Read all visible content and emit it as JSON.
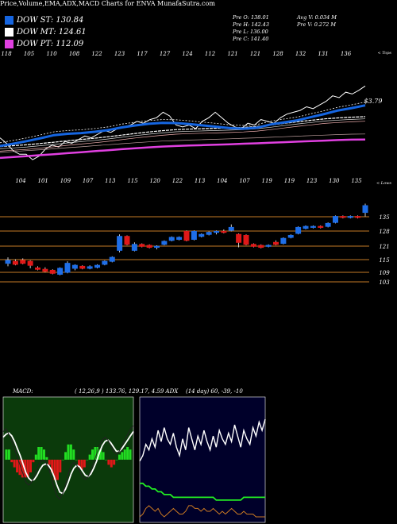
{
  "header": {
    "title": "Price,Volume,EMA,ADX,MACD Charts for ENVA MunafaSutra.com",
    "legend": [
      {
        "label": "DOW ST: 130.84",
        "color": "#1565e0"
      },
      {
        "label": "DOW MT: 124.61",
        "color": "#ffffff"
      },
      {
        "label": "DOW PT: 112.09",
        "color": "#e040e0"
      }
    ],
    "stats": {
      "open": "Pre   O: 138.01",
      "high": "Pre   H: 142.43",
      "low": "Pre   L: 136.00",
      "close": "Pre   C: 141.40",
      "avg_vol": "Avg V: 0.034   M",
      "pre_vol": "Pre   V: 0.272   M"
    }
  },
  "colors": {
    "dow_st": "#1565e0",
    "dow_mt": "#ffffff",
    "dow_pt": "#e040e0",
    "up": "#1e6ee8",
    "down": "#e01818",
    "level": "#c47a26",
    "macd_bg": "#0b3a0b",
    "macd_up": "#22dd22",
    "macd_down": "#e01818",
    "adx_bg": "#00002a",
    "adx_green": "#22ee22",
    "adx_orange": "#cc7a22"
  },
  "ema_panel": {
    "top_label": "< Tops",
    "low_label": "< Lows",
    "last_value_label": "$3.79",
    "top_values": [
      "118",
      "105",
      "110",
      "108",
      "122",
      "123",
      "117",
      "127",
      "124",
      "112",
      "121",
      "121",
      "128",
      "132",
      "131",
      "136"
    ],
    "low_values": [
      "104",
      "101",
      "109",
      "107",
      "113",
      "115",
      "120",
      "122",
      "113",
      "104",
      "107",
      "119",
      "119",
      "123",
      "130",
      "135"
    ]
  },
  "chart_data": [
    {
      "type": "line",
      "name": "EMA panel",
      "series": [
        {
          "name": "DOW ST",
          "values": [
            108.5,
            109.8,
            111.2,
            112.8,
            114.5,
            115.2,
            115.6,
            116.3,
            117.2,
            118.7,
            119.8,
            120.7,
            121.2,
            121.1,
            120.5,
            119.8,
            119.1,
            118.3,
            118.0,
            118.5,
            120.3,
            121.5,
            122.6,
            124.4,
            126.1,
            128.0,
            129.3,
            130.8
          ]
        },
        {
          "name": "DOW MT",
          "values": [
            108.2,
            108.7,
            109.2,
            109.9,
            110.6,
            111.4,
            112.1,
            112.8,
            113.6,
            114.5,
            115.4,
            116.2,
            116.9,
            117.5,
            117.8,
            118.0,
            118.2,
            118.4,
            118.7,
            119.2,
            120.0,
            120.9,
            121.8,
            122.6,
            123.4,
            123.9,
            124.3,
            124.6
          ]
        },
        {
          "name": "DOW PT",
          "values": [
            102.0,
            102.5,
            103.0,
            103.5,
            104.0,
            104.6,
            105.1,
            105.7,
            106.2,
            106.8,
            107.3,
            107.8,
            108.2,
            108.5,
            108.8,
            109.0,
            109.2,
            109.5,
            109.8,
            110.0,
            110.3,
            110.6,
            110.9,
            111.2,
            111.5,
            111.8,
            112.0,
            112.09
          ]
        },
        {
          "name": "",
          "values": [
            113,
            110,
            106,
            104,
            104,
            101,
            103,
            107,
            109,
            108,
            111,
            110,
            112,
            114,
            113,
            115,
            117,
            116,
            118,
            119,
            120,
            122,
            121,
            123,
            124,
            127,
            125,
            120,
            119,
            120,
            118,
            122,
            124,
            127,
            124,
            121,
            119,
            118,
            121,
            120,
            123,
            122,
            121,
            124,
            126,
            127,
            128,
            130,
            129,
            131,
            133,
            136,
            135,
            138,
            137,
            139,
            141.4
          ]
        }
      ]
    },
    {
      "type": "bar",
      "name": "Price candles",
      "levels": [
        135,
        128,
        121,
        115,
        109,
        103
      ],
      "candles": [
        {
          "o": 112.5,
          "c": 114.0,
          "h": 115.5,
          "l": 111.0
        },
        {
          "o": 113.5,
          "c": 112.0,
          "h": 114.5,
          "l": 111.5
        },
        {
          "o": 114.0,
          "c": 112.5,
          "h": 115.0,
          "l": 112.0
        },
        {
          "o": 113.5,
          "c": 111.5,
          "h": 114.0,
          "l": 110.0
        },
        {
          "o": 110.2,
          "c": 109.5,
          "h": 111.0,
          "l": 109.0
        },
        {
          "o": 109.5,
          "c": 108.5,
          "h": 110.5,
          "l": 108.0
        },
        {
          "o": 109.0,
          "c": 107.5,
          "h": 109.5,
          "l": 107.0
        },
        {
          "o": 107.0,
          "c": 110.0,
          "h": 110.5,
          "l": 106.5
        },
        {
          "o": 108.0,
          "c": 112.5,
          "h": 113.5,
          "l": 107.5
        },
        {
          "o": 110.0,
          "c": 111.5,
          "h": 112.0,
          "l": 109.0
        },
        {
          "o": 111.0,
          "c": 110.0,
          "h": 111.5,
          "l": 109.5
        },
        {
          "o": 110.0,
          "c": 110.8,
          "h": 111.5,
          "l": 109.5
        },
        {
          "o": 110.5,
          "c": 111.5,
          "h": 112.0,
          "l": 110.0
        },
        {
          "o": 112.0,
          "c": 113.5,
          "h": 114.0,
          "l": 111.5
        },
        {
          "o": 113.5,
          "c": 115.5,
          "h": 116.0,
          "l": 113.0
        },
        {
          "o": 119.0,
          "c": 126.0,
          "h": 127.0,
          "l": 118.0
        },
        {
          "o": 126.0,
          "c": 122.0,
          "h": 126.5,
          "l": 121.5
        },
        {
          "o": 119.0,
          "c": 122.0,
          "h": 123.0,
          "l": 118.5
        },
        {
          "o": 122.0,
          "c": 121.0,
          "h": 122.5,
          "l": 120.5
        },
        {
          "o": 121.5,
          "c": 120.5,
          "h": 122.0,
          "l": 120.0
        },
        {
          "o": 120.5,
          "c": 121.0,
          "h": 121.5,
          "l": 119.5
        },
        {
          "o": 122.0,
          "c": 123.5,
          "h": 124.0,
          "l": 121.5
        },
        {
          "o": 124.0,
          "c": 125.5,
          "h": 126.0,
          "l": 123.5
        },
        {
          "o": 124.5,
          "c": 125.5,
          "h": 126.0,
          "l": 124.0
        },
        {
          "o": 128.5,
          "c": 124.0,
          "h": 129.0,
          "l": 123.5
        },
        {
          "o": 124.5,
          "c": 128.5,
          "h": 129.0,
          "l": 124.0
        },
        {
          "o": 126.0,
          "c": 127.0,
          "h": 127.5,
          "l": 125.5
        },
        {
          "o": 127.0,
          "c": 128.0,
          "h": 128.5,
          "l": 126.5
        },
        {
          "o": 128.0,
          "c": 128.5,
          "h": 129.0,
          "l": 127.0
        },
        {
          "o": 128.5,
          "c": 128.0,
          "h": 129.5,
          "l": 127.5
        },
        {
          "o": 129.0,
          "c": 130.5,
          "h": 132.0,
          "l": 128.5
        },
        {
          "o": 127.0,
          "c": 123.0,
          "h": 127.5,
          "l": 120.5
        },
        {
          "o": 126.5,
          "c": 122.0,
          "h": 127.0,
          "l": 121.5
        },
        {
          "o": 122.0,
          "c": 121.0,
          "h": 122.5,
          "l": 120.5
        },
        {
          "o": 121.5,
          "c": 120.5,
          "h": 122.0,
          "l": 120.0
        },
        {
          "o": 121.0,
          "c": 121.5,
          "h": 122.0,
          "l": 120.5
        },
        {
          "o": 123.0,
          "c": 122.0,
          "h": 124.0,
          "l": 121.5
        },
        {
          "o": 122.5,
          "c": 125.0,
          "h": 125.5,
          "l": 122.0
        },
        {
          "o": 125.5,
          "c": 126.5,
          "h": 127.0,
          "l": 125.0
        },
        {
          "o": 127.5,
          "c": 130.5,
          "h": 131.0,
          "l": 127.0
        },
        {
          "o": 130.0,
          "c": 131.0,
          "h": 131.5,
          "l": 129.5
        },
        {
          "o": 130.5,
          "c": 131.0,
          "h": 131.5,
          "l": 130.0
        },
        {
          "o": 131.0,
          "c": 130.5,
          "h": 131.5,
          "l": 130.0
        },
        {
          "o": 131.0,
          "c": 132.5,
          "h": 133.0,
          "l": 130.5
        },
        {
          "o": 133.0,
          "c": 136.0,
          "h": 136.5,
          "l": 132.5
        },
        {
          "o": 136.0,
          "c": 135.5,
          "h": 136.5,
          "l": 135.0
        },
        {
          "o": 135.5,
          "c": 136.0,
          "h": 136.5,
          "l": 135.0
        },
        {
          "o": 136.0,
          "c": 135.5,
          "h": 136.5,
          "l": 135.0
        },
        {
          "o": 138.0,
          "c": 141.4,
          "h": 142.4,
          "l": 136.0
        }
      ]
    },
    {
      "type": "line",
      "name": "MACD",
      "params_label": "( 12,26,9 ) 133.76,  129.17,  4.59 ADX",
      "series": [
        {
          "name": "",
          "values": [
            20,
            22,
            18,
            14,
            8,
            2,
            -4,
            -10,
            -16,
            -18,
            -16,
            -12,
            -6,
            -2,
            0,
            -2,
            -6,
            -12,
            -20,
            -26,
            -28,
            -24,
            -18,
            -10,
            -4,
            -2,
            -4,
            -8,
            -12,
            -14,
            -12,
            -8,
            -2,
            4,
            10,
            14,
            16,
            14,
            10,
            6,
            4,
            6,
            10,
            14,
            18,
            22,
            24
          ]
        },
        {
          "name": "",
          "values": [
            16,
            18,
            19,
            17,
            13,
            8,
            3,
            -3,
            -9,
            -13,
            -15,
            -14,
            -11,
            -7,
            -4,
            -3,
            -4,
            -7,
            -12,
            -18,
            -23,
            -24,
            -21,
            -16,
            -10,
            -6,
            -4,
            -5,
            -8,
            -11,
            -12,
            -10,
            -6,
            -1,
            5,
            10,
            13,
            14,
            12,
            9,
            6,
            6,
            8,
            11,
            14,
            17,
            20
          ]
        },
        {
          "name": "",
          "values": [
            4,
            4,
            -1,
            -3,
            -5,
            -6,
            -7,
            -7,
            -7,
            -5,
            -1,
            2,
            5,
            5,
            4,
            1,
            -2,
            -5,
            -8,
            -8,
            -5,
            0,
            3,
            6,
            6,
            4,
            0,
            -3,
            -4,
            -3,
            0,
            2,
            4,
            5,
            5,
            4,
            3,
            0,
            -2,
            -3,
            -2,
            0,
            2,
            3,
            4,
            5,
            4
          ]
        }
      ]
    },
    {
      "type": "line",
      "name": "ADX",
      "params_label": "(14 day) 60,  -39,  -10",
      "series": [
        {
          "name": "",
          "values": [
            22,
            24,
            28,
            26,
            30,
            27,
            33,
            29,
            34,
            30,
            28,
            32,
            27,
            24,
            30,
            26,
            34,
            30,
            26,
            31,
            28,
            33,
            29,
            26,
            31,
            27,
            33,
            30,
            28,
            32,
            29,
            35,
            31,
            27,
            33,
            30,
            28,
            34,
            31,
            36,
            33,
            37
          ]
        },
        {
          "name": "",
          "values": [
            14,
            14,
            13,
            13,
            12,
            12,
            11,
            11,
            10,
            10,
            10,
            9,
            9,
            9,
            9,
            9,
            9,
            9,
            9,
            9,
            9,
            9,
            9,
            9,
            9,
            8,
            8,
            8,
            8,
            8,
            8,
            8,
            8,
            8,
            9,
            9,
            9,
            9,
            9,
            9,
            9,
            9
          ]
        },
        {
          "name": "",
          "values": [
            2,
            3,
            5,
            6,
            5,
            4,
            5,
            3,
            2,
            3,
            4,
            5,
            4,
            3,
            3,
            4,
            6,
            6,
            5,
            5,
            4,
            5,
            4,
            4,
            5,
            4,
            3,
            4,
            3,
            4,
            5,
            4,
            3,
            3,
            4,
            3,
            3,
            3,
            2,
            2,
            2,
            2
          ]
        }
      ]
    }
  ]
}
